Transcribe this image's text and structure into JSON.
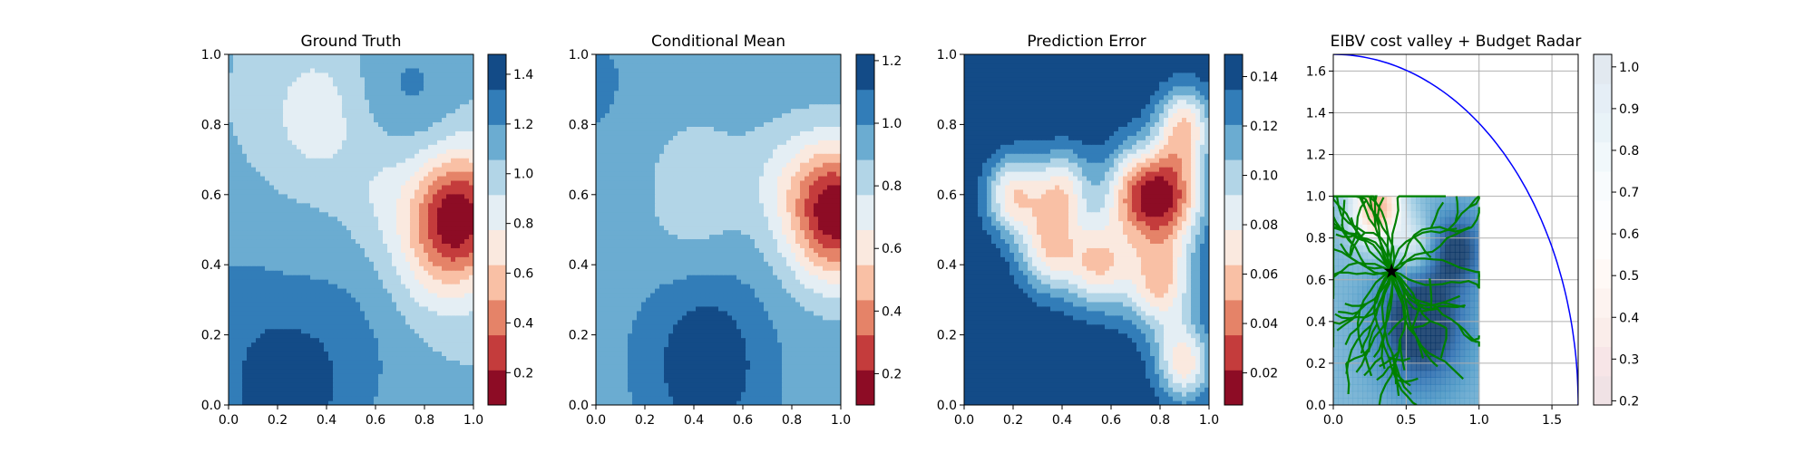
{
  "chart_data": [
    {
      "type": "heatmap",
      "title": "Ground Truth",
      "colormap": "RdBu",
      "xticks": [
        "0.0",
        "0.2",
        "0.4",
        "0.6",
        "0.8",
        "1.0"
      ],
      "yticks": [
        "0.0",
        "0.2",
        "0.4",
        "0.6",
        "0.8",
        "1.0"
      ],
      "xlim": [
        0,
        1
      ],
      "ylim": [
        0,
        1
      ],
      "colorbar": {
        "ticks": [
          "0.2",
          "0.4",
          "0.6",
          "0.8",
          "1.0",
          "1.2",
          "1.4"
        ],
        "range": [
          0.07,
          1.48
        ],
        "levels": 10
      },
      "blobs": [
        {
          "x": 0.95,
          "y": 0.55,
          "a": -1.5,
          "s": 0.13
        },
        {
          "x": 0.85,
          "y": 0.45,
          "a": -0.6,
          "s": 0.14
        },
        {
          "x": 0.35,
          "y": 0.83,
          "a": -0.45,
          "s": 0.13
        },
        {
          "x": 0.62,
          "y": 0.62,
          "a": -0.25,
          "s": 0.12
        },
        {
          "x": 0.2,
          "y": 0.0,
          "a": 0.6,
          "s": 0.16
        },
        {
          "x": 0.45,
          "y": 0.15,
          "a": 0.35,
          "s": 0.22
        },
        {
          "x": 0.75,
          "y": 0.9,
          "a": 0.3,
          "s": 0.14
        },
        {
          "x": 0.0,
          "y": 0.3,
          "a": 0.25,
          "s": 0.18
        }
      ],
      "base": 0.85
    },
    {
      "type": "heatmap",
      "title": "Conditional Mean",
      "colormap": "RdBu",
      "xticks": [
        "0.0",
        "0.2",
        "0.4",
        "0.6",
        "0.8",
        "1.0"
      ],
      "yticks": [
        "0.0",
        "0.2",
        "0.4",
        "0.6",
        "0.8",
        "1.0"
      ],
      "xlim": [
        0,
        1
      ],
      "ylim": [
        0,
        1
      ],
      "colorbar": {
        "ticks": [
          "0.2",
          "0.4",
          "0.6",
          "0.8",
          "1.0",
          "1.2"
        ],
        "range": [
          0.1,
          1.22
        ],
        "levels": 10
      },
      "blobs": [
        {
          "x": 0.98,
          "y": 0.55,
          "a": -1.05,
          "s": 0.14
        },
        {
          "x": 0.4,
          "y": 0.62,
          "a": -0.2,
          "s": 0.15
        },
        {
          "x": 0.75,
          "y": 0.65,
          "a": -0.15,
          "s": 0.12
        },
        {
          "x": 0.45,
          "y": 0.12,
          "a": 0.32,
          "s": 0.16
        },
        {
          "x": 0.0,
          "y": 0.9,
          "a": 0.05,
          "s": 0.2
        }
      ],
      "base": 0.92
    },
    {
      "type": "heatmap",
      "title": "Prediction Error",
      "colormap": "RdBu",
      "xticks": [
        "0.0",
        "0.2",
        "0.4",
        "0.6",
        "0.8",
        "1.0"
      ],
      "yticks": [
        "0.0",
        "0.2",
        "0.4",
        "0.6",
        "0.8",
        "1.0"
      ],
      "xlim": [
        0,
        1
      ],
      "ylim": [
        0,
        1
      ],
      "colorbar": {
        "ticks": [
          "0.02",
          "0.04",
          "0.06",
          "0.08",
          "0.10",
          "0.12",
          "0.14"
        ],
        "range": [
          0.007,
          0.149
        ],
        "levels": 10
      },
      "blobs": [
        {
          "x": 0.2,
          "y": 0.6,
          "a": -0.09,
          "s": 0.08
        },
        {
          "x": 0.4,
          "y": 0.62,
          "a": -0.08,
          "s": 0.08
        },
        {
          "x": 0.35,
          "y": 0.45,
          "a": -0.09,
          "s": 0.09
        },
        {
          "x": 0.55,
          "y": 0.4,
          "a": -0.09,
          "s": 0.09
        },
        {
          "x": 0.7,
          "y": 0.6,
          "a": -0.1,
          "s": 0.1
        },
        {
          "x": 0.85,
          "y": 0.6,
          "a": -0.11,
          "s": 0.1
        },
        {
          "x": 0.8,
          "y": 0.35,
          "a": -0.1,
          "s": 0.1
        },
        {
          "x": 0.9,
          "y": 0.12,
          "a": -0.09,
          "s": 0.08
        },
        {
          "x": 0.9,
          "y": 0.8,
          "a": -0.09,
          "s": 0.08
        }
      ],
      "base": 0.15
    },
    {
      "type": "line",
      "title": "EIBV cost valley + Budget Radar",
      "xticks": [
        "0.0",
        "0.5",
        "1.0",
        "1.5"
      ],
      "yticks": [
        "0.0",
        "0.2",
        "0.4",
        "0.6",
        "0.8",
        "1.0",
        "1.2",
        "1.4",
        "1.6"
      ],
      "xlim": [
        0,
        1.68
      ],
      "ylim": [
        0,
        1.68
      ],
      "grid": true,
      "budget_radius": 1.68,
      "start_point": {
        "x": 0.4,
        "y": 0.64
      },
      "colorbar": {
        "ticks": [
          "0.2",
          "0.3",
          "0.4",
          "0.5",
          "0.6",
          "0.7",
          "0.8",
          "0.9",
          "1.0"
        ],
        "range": [
          0.19,
          1.03
        ],
        "levels": 12
      }
    }
  ]
}
